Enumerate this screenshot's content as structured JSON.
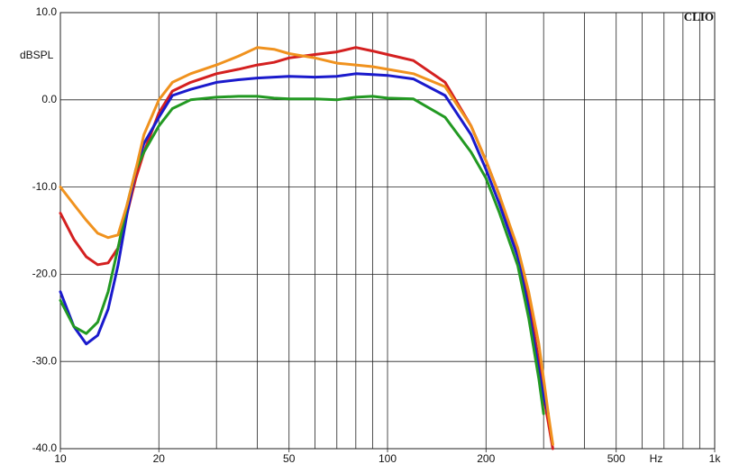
{
  "chart_data": {
    "type": "line",
    "y_label": "dBSPL",
    "x_unit": "Hz",
    "brand": "CLIO",
    "log_x": true,
    "grid": true,
    "xlim": [
      10,
      1000
    ],
    "ylim": [
      -40,
      10
    ],
    "xticks": [
      10,
      20,
      50,
      100,
      200,
      500,
      {
        "value": 1000,
        "label": "1k"
      }
    ],
    "xgrid": [
      10,
      20,
      30,
      40,
      50,
      60,
      70,
      80,
      90,
      100,
      200,
      300,
      400,
      500,
      600,
      700,
      800,
      900,
      1000
    ],
    "yticks": [
      {
        "value": 10,
        "label": "10.0"
      },
      {
        "value": 0,
        "label": "0.0"
      },
      {
        "value": -10,
        "label": "-10.0"
      },
      {
        "value": -20,
        "label": "-20.0"
      },
      {
        "value": -30,
        "label": "-30.0"
      },
      {
        "value": -40,
        "label": "-40.0"
      }
    ],
    "x": [
      10,
      11,
      12,
      13,
      14,
      15,
      16,
      17,
      18,
      20,
      22,
      25,
      30,
      35,
      40,
      45,
      50,
      60,
      70,
      80,
      90,
      100,
      120,
      150,
      180,
      200,
      220,
      250,
      270,
      290,
      300,
      310,
      320
    ],
    "series": [
      {
        "color": "#d42020",
        "values": [
          -13,
          -16,
          -18,
          -18.9,
          -18.7,
          -17,
          -13,
          -9,
          -6,
          -1.5,
          1,
          2,
          3,
          3.5,
          4,
          4.3,
          4.8,
          5.2,
          5.5,
          6,
          5.6,
          5.2,
          4.5,
          2,
          -3,
          -7,
          -11,
          -18,
          -23,
          -30,
          -34,
          -37,
          -40
        ]
      },
      {
        "color": "#1a1acc",
        "values": [
          -22,
          -26,
          -28,
          -27,
          -24,
          -19,
          -13,
          -8,
          -5,
          -2,
          0.5,
          1.2,
          2,
          2.3,
          2.5,
          2.6,
          2.7,
          2.6,
          2.7,
          3,
          2.9,
          2.8,
          2.4,
          0.5,
          -4,
          -8,
          -12,
          -18,
          -24,
          -31,
          -34,
          -36,
          null
        ]
      },
      {
        "color": "#229922",
        "values": [
          -23,
          -26,
          -26.8,
          -25.5,
          -22,
          -17,
          -12,
          -8,
          -6,
          -3,
          -1,
          0,
          0.3,
          0.4,
          0.4,
          0.2,
          0.1,
          0.1,
          0,
          0.3,
          0.4,
          0.2,
          0.1,
          -2,
          -6,
          -9,
          -13,
          -19,
          -25,
          -32,
          -36,
          null,
          null
        ]
      },
      {
        "color": "#f0921e",
        "values": [
          -10,
          -12,
          -13.8,
          -15.3,
          -15.8,
          -15.5,
          -12,
          -8,
          -4,
          0,
          2,
          3,
          4,
          5,
          6,
          5.8,
          5.3,
          4.8,
          4.2,
          4,
          3.8,
          3.5,
          3,
          1.5,
          -3,
          -7,
          -11,
          -17,
          -22,
          -28,
          -32,
          -36,
          -39.5
        ]
      }
    ]
  }
}
